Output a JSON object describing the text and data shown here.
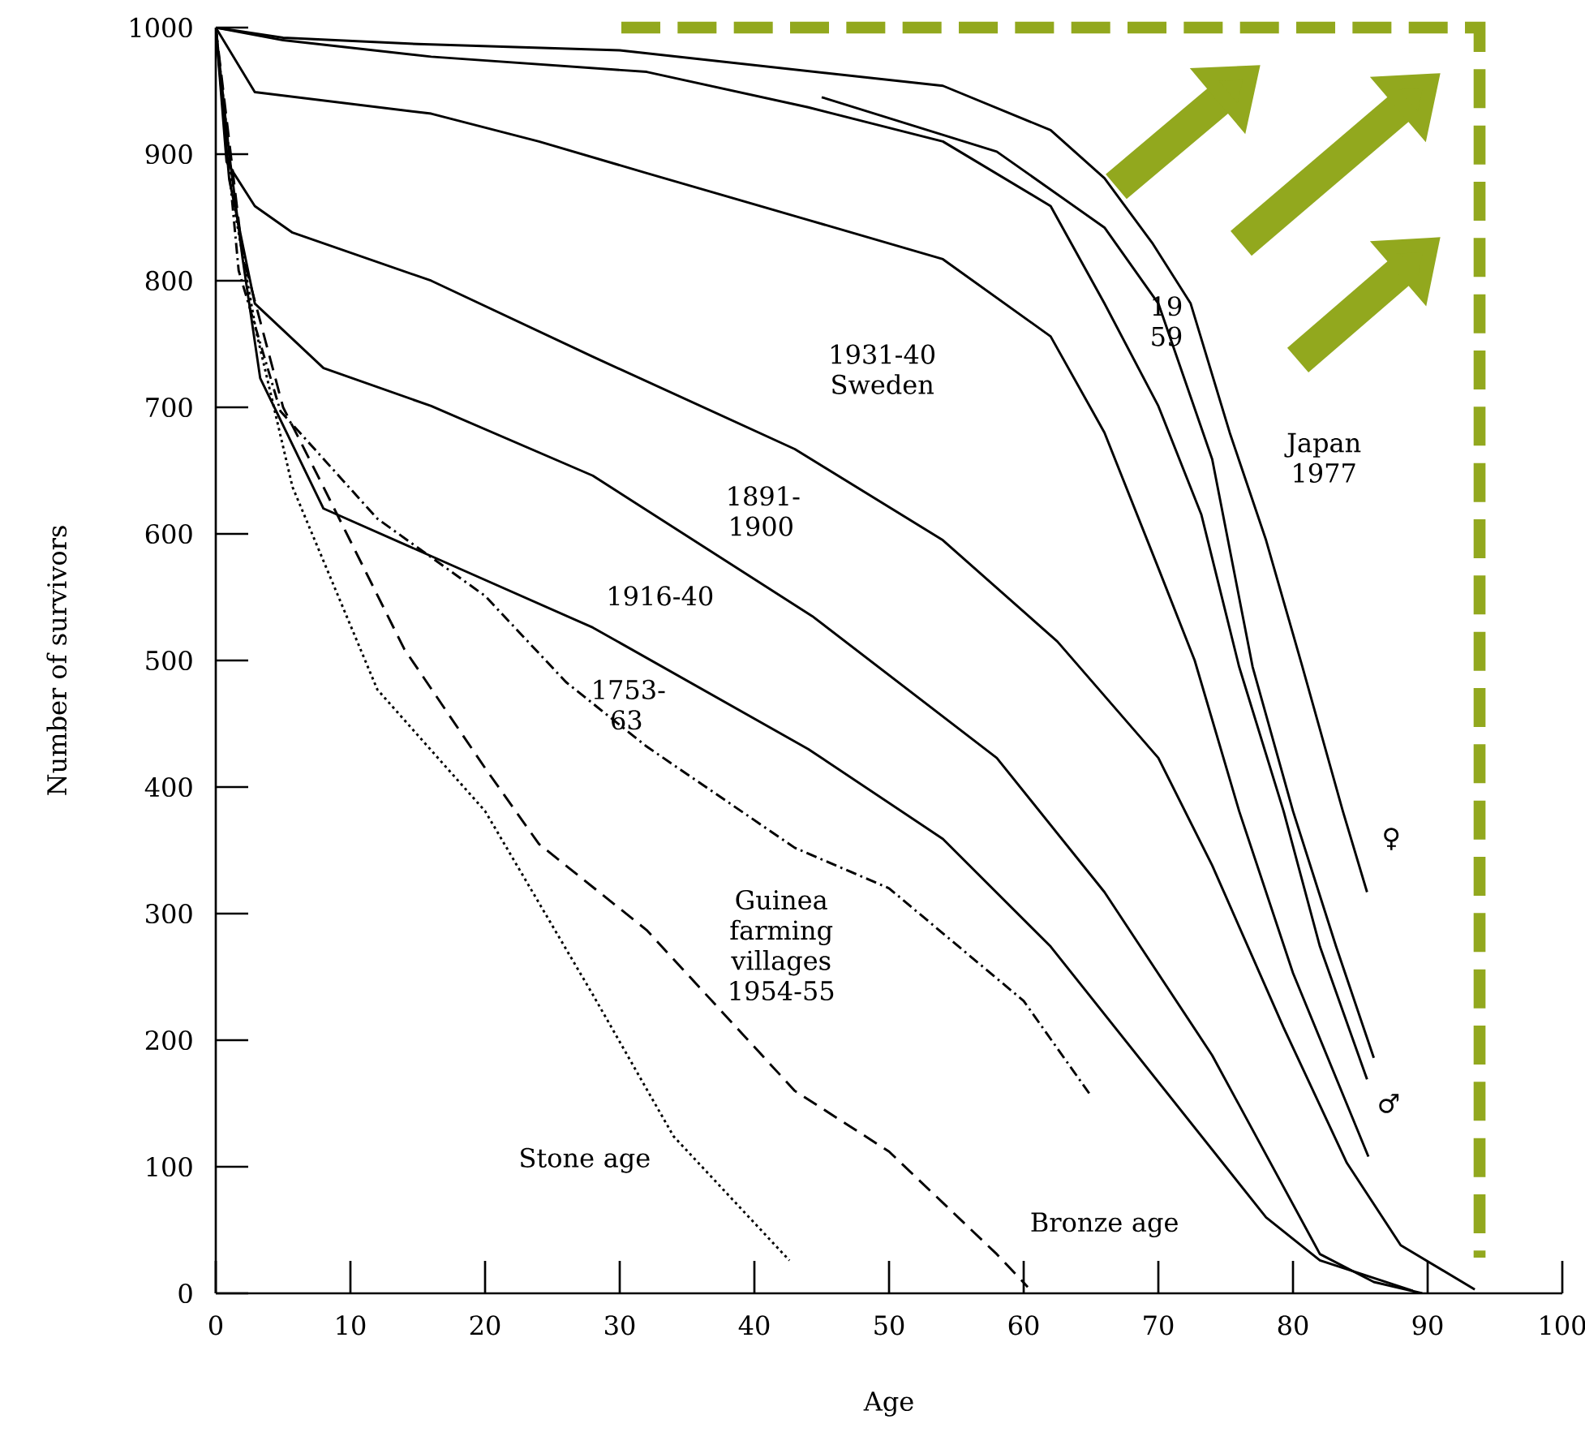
{
  "chart_data": {
    "type": "line",
    "xlabel": "Age",
    "ylabel": "Number of survivors",
    "xlim": [
      0,
      100
    ],
    "ylim": [
      0,
      1000
    ],
    "xticks": [
      0,
      10,
      20,
      30,
      40,
      50,
      60,
      70,
      80,
      90,
      100
    ],
    "yticks": [
      0,
      100,
      200,
      300,
      400,
      500,
      600,
      700,
      800,
      900,
      1000
    ],
    "grid": false,
    "marker": "none",
    "series": [
      {
        "color": "#000000",
        "line_style": "solid",
        "x": [
          0,
          5,
          15,
          30,
          42,
          54,
          62,
          66,
          69.6,
          72.4,
          75.3,
          78,
          80.7,
          83.7,
          85.5
        ],
        "values": [
          1000,
          992,
          987,
          982,
          968,
          954,
          919,
          881,
          829,
          782,
          680,
          595,
          495,
          381,
          317
        ]
      },
      {
        "color": "#000000",
        "line_style": "solid",
        "x": [
          0,
          5,
          16,
          32,
          44,
          54,
          62,
          66,
          70,
          73.2,
          76,
          79.3,
          82,
          85.5
        ],
        "values": [
          1000,
          990,
          977,
          965,
          937,
          910,
          859,
          782,
          701,
          615,
          495,
          381,
          274,
          169
        ]
      },
      {
        "color": "#000000",
        "line_style": "solid",
        "x": [
          45,
          58,
          66,
          70,
          74,
          77,
          80,
          83.2,
          86
        ],
        "values": [
          945,
          902,
          842,
          782,
          659,
          495,
          381,
          274,
          186
        ]
      },
      {
        "color": "#000000",
        "line_style": "solid",
        "x": [
          0,
          2.9,
          16,
          24,
          32,
          44,
          54,
          62,
          66,
          70,
          72.7,
          76,
          80,
          85.6
        ],
        "values": [
          1000,
          949,
          932,
          910,
          885,
          848,
          817,
          756,
          680,
          573,
          500,
          381,
          253,
          108
        ]
      },
      {
        "color": "#000000",
        "line_style": "solid",
        "x": [
          0,
          0.8,
          2.9,
          5.7,
          16,
          28,
          43,
          54,
          62.5,
          70,
          74,
          79.3,
          84,
          88,
          93.5
        ],
        "values": [
          1000,
          894,
          859,
          838,
          800,
          740,
          667,
          595,
          515,
          423,
          338,
          210,
          103,
          38,
          3
        ]
      },
      {
        "color": "#000000",
        "line_style": "solid",
        "x": [
          0,
          1,
          2.9,
          8,
          16,
          28,
          44.3,
          58,
          66,
          74,
          82,
          86,
          89.6
        ],
        "values": [
          1000,
          880,
          782,
          731,
          701,
          646,
          535,
          423,
          317,
          188,
          31,
          9,
          0
        ]
      },
      {
        "color": "#000000",
        "line_style": "solid",
        "x": [
          0,
          1,
          2,
          3.3,
          8,
          28,
          44,
          54,
          62,
          70,
          78,
          82,
          88.9
        ],
        "values": [
          1000,
          900,
          817,
          723,
          620,
          526,
          430,
          359,
          274,
          167,
          60,
          26,
          2
        ]
      },
      {
        "color": "#000000",
        "line_style": "dashdot",
        "x": [
          0,
          1.7,
          4.8,
          12,
          20,
          26,
          32,
          43,
          50,
          60,
          65
        ],
        "values": [
          1000,
          808,
          697,
          612,
          551,
          483,
          432,
          352,
          320,
          231,
          156
        ]
      },
      {
        "color": "#000000",
        "line_style": "dashed",
        "x": [
          0,
          2,
          5,
          8,
          14,
          20,
          24,
          32,
          43,
          50,
          58,
          60.3
        ],
        "values": [
          1000,
          820,
          700,
          637,
          509,
          415,
          355,
          287,
          160,
          112,
          31,
          5
        ]
      },
      {
        "color": "#000000",
        "line_style": "dotted",
        "x": [
          0,
          1.5,
          3,
          5.7,
          12,
          20,
          28,
          34,
          42.6
        ],
        "values": [
          1000,
          850,
          760,
          637,
          477,
          381,
          236,
          124,
          26
        ]
      }
    ],
    "annotations": [
      "1931-40 Sweden",
      "1891-1900",
      "1916-40",
      "1753-63",
      "Guinea farming villages 1954-55",
      "Stone age",
      "Bronze age",
      "19 59",
      "Japan 1977",
      "♀",
      "♂"
    ]
  }
}
